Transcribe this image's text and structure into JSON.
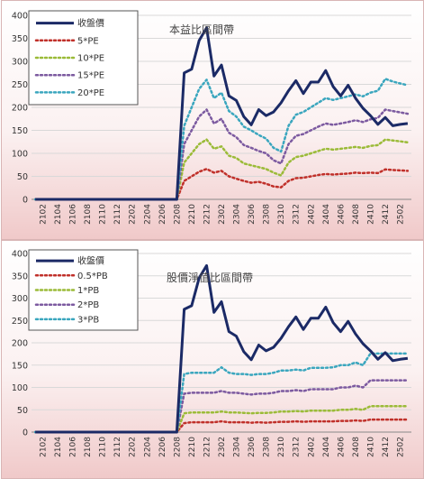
{
  "colors": {
    "close": "#1b2a66",
    "s1": "#c0302a",
    "s2": "#9bbb38",
    "s3": "#7c5aa0",
    "s4": "#3aa6be"
  },
  "chart_data": [
    {
      "type": "line",
      "title": "本益比區間帶",
      "xlabel": "",
      "ylabel": "",
      "ylim": [
        0,
        400
      ],
      "yticks": [
        0,
        50,
        100,
        150,
        200,
        250,
        300,
        350,
        400
      ],
      "xtick_labels": [
        "2102",
        "2104",
        "2106",
        "2108",
        "2110",
        "2112",
        "2202",
        "2204",
        "2206",
        "2208",
        "2210",
        "2212",
        "2302",
        "2304",
        "2306",
        "2308",
        "2310",
        "2312",
        "2402",
        "2404",
        "2406",
        "2408",
        "2410",
        "2412",
        "2502"
      ],
      "grid": true,
      "legend_position": "top-left",
      "x": [
        "2101",
        "2102",
        "2103",
        "2104",
        "2105",
        "2106",
        "2107",
        "2108",
        "2109",
        "2110",
        "2111",
        "2112",
        "2201",
        "2202",
        "2203",
        "2204",
        "2205",
        "2206",
        "2207",
        "2208",
        "2209",
        "2210",
        "2211",
        "2212",
        "2301",
        "2302",
        "2303",
        "2304",
        "2305",
        "2306",
        "2307",
        "2308",
        "2309",
        "2310",
        "2311",
        "2312",
        "2401",
        "2402",
        "2403",
        "2404",
        "2405",
        "2406",
        "2407",
        "2408",
        "2409",
        "2410",
        "2411",
        "2412",
        "2501",
        "2502",
        "2503"
      ],
      "series": [
        {
          "name": "收盤價",
          "color": "#1b2a66",
          "dash": "",
          "width": 3,
          "values": [
            0,
            0,
            0,
            0,
            0,
            0,
            0,
            0,
            0,
            0,
            0,
            0,
            0,
            0,
            0,
            0,
            0,
            0,
            0,
            0,
            275,
            283,
            345,
            373,
            268,
            292,
            225,
            215,
            180,
            162,
            195,
            182,
            190,
            210,
            236,
            258,
            230,
            255,
            255,
            280,
            245,
            225,
            248,
            220,
            198,
            182,
            163,
            178,
            160,
            163,
            165
          ]
        },
        {
          "name": "5*PE",
          "color": "#c0302a",
          "dash": "2,3",
          "width": 2.5,
          "values": [
            0,
            0,
            0,
            0,
            0,
            0,
            0,
            0,
            0,
            0,
            0,
            0,
            0,
            0,
            0,
            0,
            0,
            0,
            0,
            0,
            40,
            50,
            60,
            66,
            58,
            62,
            50,
            45,
            40,
            36,
            38,
            34,
            28,
            26,
            40,
            46,
            47,
            50,
            53,
            55,
            54,
            55,
            56,
            58,
            57,
            58,
            57,
            65,
            64,
            63,
            62
          ]
        },
        {
          "name": "10*PE",
          "color": "#9bbb38",
          "dash": "2,3",
          "width": 2.5,
          "values": [
            0,
            0,
            0,
            0,
            0,
            0,
            0,
            0,
            0,
            0,
            0,
            0,
            0,
            0,
            0,
            0,
            0,
            0,
            0,
            0,
            80,
            100,
            120,
            130,
            110,
            115,
            95,
            90,
            78,
            74,
            70,
            66,
            58,
            52,
            80,
            92,
            95,
            100,
            105,
            110,
            108,
            110,
            112,
            114,
            112,
            116,
            118,
            130,
            128,
            126,
            124
          ]
        },
        {
          "name": "15*PE",
          "color": "#7c5aa0",
          "dash": "2,3",
          "width": 2.5,
          "values": [
            0,
            0,
            0,
            0,
            0,
            0,
            0,
            0,
            0,
            0,
            0,
            0,
            0,
            0,
            0,
            0,
            0,
            0,
            0,
            0,
            120,
            150,
            180,
            195,
            165,
            175,
            145,
            135,
            118,
            112,
            105,
            100,
            85,
            78,
            120,
            138,
            142,
            150,
            158,
            165,
            162,
            165,
            168,
            172,
            168,
            174,
            177,
            195,
            192,
            189,
            186
          ]
        },
        {
          "name": "20*PE",
          "color": "#3aa6be",
          "dash": "2,3",
          "width": 2.5,
          "values": [
            0,
            0,
            0,
            0,
            0,
            0,
            0,
            0,
            0,
            0,
            0,
            0,
            0,
            0,
            0,
            0,
            0,
            0,
            0,
            0,
            160,
            200,
            240,
            260,
            220,
            232,
            192,
            180,
            158,
            150,
            140,
            132,
            112,
            104,
            160,
            184,
            190,
            200,
            210,
            220,
            216,
            220,
            224,
            228,
            224,
            232,
            236,
            262,
            256,
            252,
            248
          ]
        }
      ]
    },
    {
      "type": "line",
      "title": "股價淨值比區間帶",
      "xlabel": "",
      "ylabel": "",
      "ylim": [
        0,
        400
      ],
      "yticks": [
        0,
        50,
        100,
        150,
        200,
        250,
        300,
        350,
        400
      ],
      "xtick_labels": [
        "2102",
        "2104",
        "2106",
        "2108",
        "2110",
        "2112",
        "2202",
        "2204",
        "2206",
        "2208",
        "2210",
        "2212",
        "2302",
        "2304",
        "2306",
        "2308",
        "2310",
        "2312",
        "2402",
        "2404",
        "2406",
        "2408",
        "2410",
        "2412",
        "2502"
      ],
      "grid": true,
      "legend_position": "top-left",
      "x": [
        "2101",
        "2102",
        "2103",
        "2104",
        "2105",
        "2106",
        "2107",
        "2108",
        "2109",
        "2110",
        "2111",
        "2112",
        "2201",
        "2202",
        "2203",
        "2204",
        "2205",
        "2206",
        "2207",
        "2208",
        "2209",
        "2210",
        "2211",
        "2212",
        "2301",
        "2302",
        "2303",
        "2304",
        "2305",
        "2306",
        "2307",
        "2308",
        "2309",
        "2310",
        "2311",
        "2312",
        "2401",
        "2402",
        "2403",
        "2404",
        "2405",
        "2406",
        "2407",
        "2408",
        "2409",
        "2410",
        "2411",
        "2412",
        "2501",
        "2502",
        "2503"
      ],
      "series": [
        {
          "name": "收盤價",
          "color": "#1b2a66",
          "dash": "",
          "width": 3,
          "values": [
            0,
            0,
            0,
            0,
            0,
            0,
            0,
            0,
            0,
            0,
            0,
            0,
            0,
            0,
            0,
            0,
            0,
            0,
            0,
            0,
            275,
            283,
            345,
            373,
            268,
            292,
            225,
            215,
            180,
            162,
            195,
            182,
            190,
            210,
            236,
            258,
            230,
            255,
            255,
            280,
            245,
            225,
            248,
            220,
            198,
            182,
            163,
            178,
            160,
            163,
            165
          ]
        },
        {
          "name": "0.5*PB",
          "color": "#c0302a",
          "dash": "2,3",
          "width": 2.5,
          "values": [
            0,
            0,
            0,
            0,
            0,
            0,
            0,
            0,
            0,
            0,
            0,
            0,
            0,
            0,
            0,
            0,
            0,
            0,
            0,
            0,
            20,
            22,
            22,
            22,
            22,
            24,
            22,
            22,
            22,
            21,
            22,
            21,
            22,
            23,
            23,
            24,
            23,
            24,
            24,
            24,
            24,
            25,
            25,
            26,
            25,
            28,
            28,
            28,
            28,
            28,
            28
          ]
        },
        {
          "name": "1*PB",
          "color": "#9bbb38",
          "dash": "2,3",
          "width": 2.5,
          "values": [
            0,
            0,
            0,
            0,
            0,
            0,
            0,
            0,
            0,
            0,
            0,
            0,
            0,
            0,
            0,
            0,
            0,
            0,
            0,
            0,
            42,
            44,
            44,
            44,
            44,
            46,
            44,
            44,
            43,
            42,
            43,
            43,
            44,
            46,
            46,
            47,
            46,
            48,
            48,
            48,
            48,
            50,
            50,
            52,
            50,
            58,
            58,
            58,
            58,
            58,
            58
          ]
        },
        {
          "name": "2*PB",
          "color": "#7c5aa0",
          "dash": "2,3",
          "width": 2.5,
          "values": [
            0,
            0,
            0,
            0,
            0,
            0,
            0,
            0,
            0,
            0,
            0,
            0,
            0,
            0,
            0,
            0,
            0,
            0,
            0,
            0,
            86,
            88,
            88,
            88,
            88,
            92,
            88,
            88,
            86,
            84,
            86,
            86,
            88,
            92,
            92,
            94,
            92,
            96,
            96,
            96,
            96,
            100,
            100,
            104,
            100,
            116,
            116,
            116,
            116,
            116,
            116
          ]
        },
        {
          "name": "3*PB",
          "color": "#3aa6be",
          "dash": "2,3",
          "width": 2.5,
          "values": [
            0,
            0,
            0,
            0,
            0,
            0,
            0,
            0,
            0,
            0,
            0,
            0,
            0,
            0,
            0,
            0,
            0,
            0,
            0,
            0,
            130,
            133,
            133,
            133,
            133,
            145,
            133,
            130,
            130,
            128,
            130,
            130,
            133,
            138,
            138,
            140,
            138,
            144,
            144,
            144,
            145,
            150,
            150,
            156,
            150,
            176,
            176,
            176,
            176,
            176,
            176
          ]
        }
      ]
    }
  ]
}
